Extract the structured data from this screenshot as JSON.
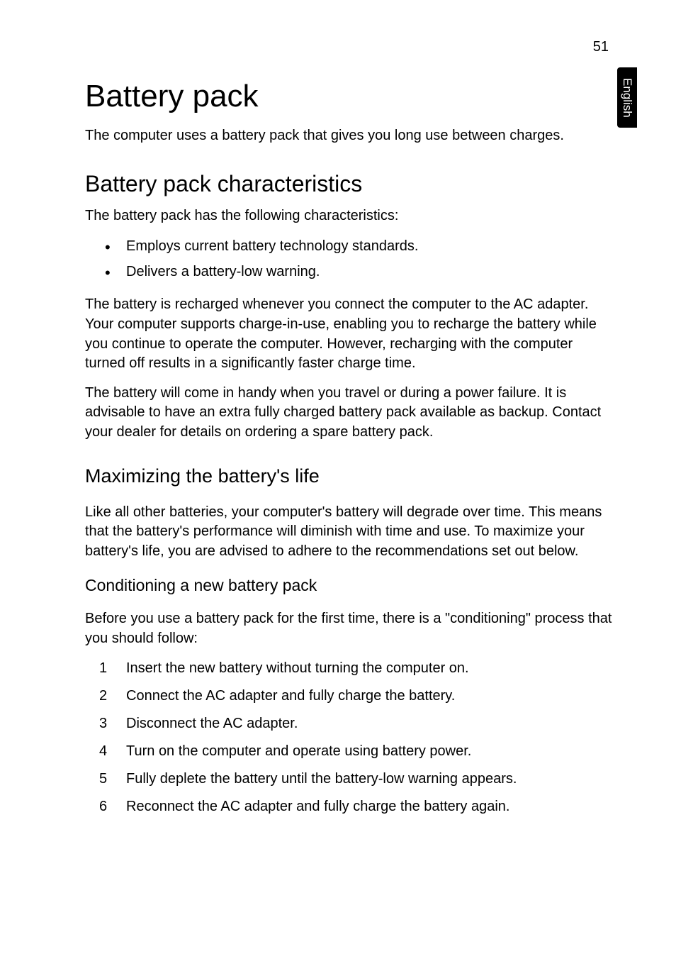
{
  "page_number": "51",
  "side_tab": "English",
  "title": "Battery pack",
  "intro": "The computer uses a battery pack that gives you long use between charges.",
  "section1": {
    "heading": "Battery pack characteristics",
    "lead": "The battery pack has the following characteristics:",
    "bullets": [
      "Employs current battery technology standards.",
      "Delivers a battery-low warning."
    ],
    "para1": "The battery is recharged whenever you connect the computer to the AC adapter. Your computer supports charge-in-use, enabling you to recharge the battery while you continue to operate the computer. However, recharging with the computer turned off results in a significantly faster charge time.",
    "para2": "The battery will come in handy when you travel or during a power failure. It is advisable to have an extra fully charged battery pack available as backup. Contact your dealer for details on ordering a spare battery pack."
  },
  "subsection1": {
    "heading": "Maximizing the battery's life",
    "para": "Like all other batteries, your computer's battery will degrade over time. This means that the battery's performance will diminish with time and use. To maximize your battery's life, you are advised to adhere to the recommendations set out below."
  },
  "subsubsection1": {
    "heading": "Conditioning a new battery pack",
    "lead": "Before you use a battery pack for the first time, there is a \"conditioning\" process that you should follow:",
    "steps": [
      "Insert the new battery without turning the computer on.",
      "Connect the AC adapter and fully charge the battery.",
      "Disconnect the AC adapter.",
      "Turn on the computer and operate using battery power.",
      "Fully deplete the battery until the battery-low warning appears.",
      "Reconnect the AC adapter and fully charge the battery again."
    ]
  },
  "style": {
    "background_color": "#ffffff",
    "text_color": "#000000",
    "tab_bg": "#000000",
    "tab_fg": "#ffffff",
    "title_fontsize": 44,
    "h2_fontsize": 32,
    "h3_fontsize": 27,
    "h4_fontsize": 23,
    "body_fontsize": 20
  }
}
